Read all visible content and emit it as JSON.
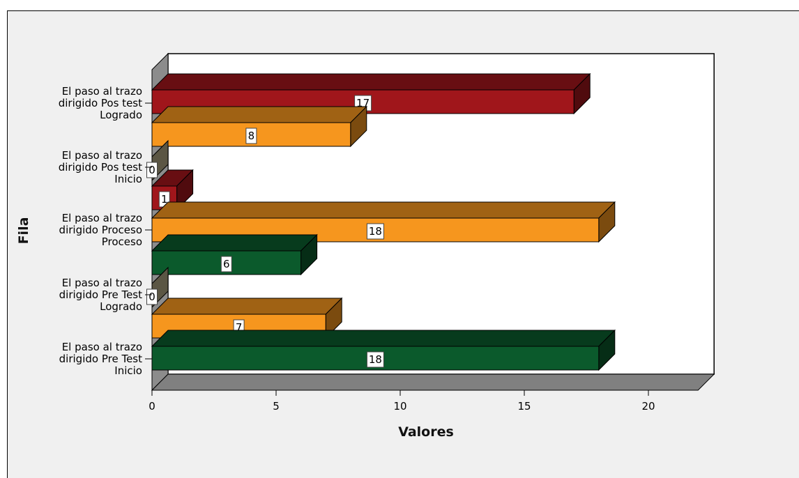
{
  "chart_data": {
    "type": "bar",
    "orientation": "horizontal",
    "style": "3d",
    "xlabel": "Valores",
    "ylabel": "Fila",
    "xlim": [
      0,
      22
    ],
    "xticks": [
      0,
      5,
      10,
      15,
      20
    ],
    "grid": false,
    "legend": "none",
    "colors": {
      "red": "#a0161b",
      "orange": "#f6961e",
      "green": "#0b5a2c",
      "neutral": "#b5ab87"
    },
    "groups": [
      {
        "label": "El paso al trazo dirigido Pos test Logrado",
        "label_lines": [
          "El paso al trazo",
          "dirigido Pos test",
          "Logrado"
        ],
        "bars": [
          {
            "value": 17,
            "color": "red",
            "label": "17"
          },
          {
            "value": 8,
            "color": "orange",
            "label": "8"
          }
        ]
      },
      {
        "label": "El paso al trazo dirigido Pos test Inicio",
        "label_lines": [
          "El paso al trazo",
          "dirigido Pos test",
          "Inicio"
        ],
        "bars": [
          {
            "value": 0,
            "color": "neutral",
            "label": "0"
          },
          {
            "value": 1,
            "color": "red",
            "label": "1"
          }
        ]
      },
      {
        "label": "El paso al trazo dirigido Proceso Proceso",
        "label_lines": [
          "El paso al trazo",
          "dirigido Proceso",
          "Proceso"
        ],
        "bars": [
          {
            "value": 18,
            "color": "orange",
            "label": "18"
          },
          {
            "value": 6,
            "color": "green",
            "label": "6"
          }
        ]
      },
      {
        "label": "El paso al trazo dirigido Pre Test Logrado",
        "label_lines": [
          "El paso al trazo",
          "dirigido Pre Test",
          "Logrado"
        ],
        "bars": [
          {
            "value": 0,
            "color": "neutral",
            "label": "0"
          },
          {
            "value": 7,
            "color": "orange",
            "label": "7"
          }
        ]
      },
      {
        "label": "El paso al trazo dirigido Pre Test Inicio",
        "label_lines": [
          "El paso al trazo",
          "dirigido Pre Test",
          "Inicio"
        ],
        "bars": [
          {
            "value": 18,
            "color": "green",
            "label": "18"
          }
        ]
      }
    ]
  }
}
